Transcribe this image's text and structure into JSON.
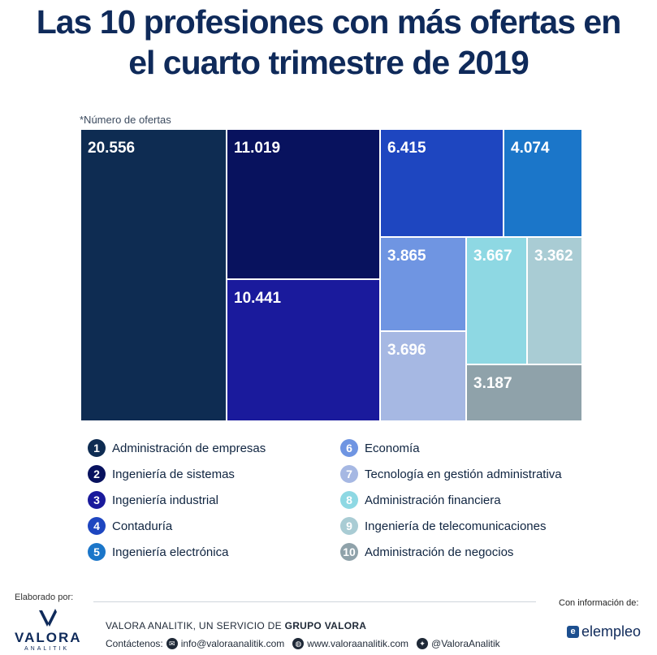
{
  "title_line1": "Las 10 profesiones con más ofertas en",
  "title_line2": "el cuarto trimestre de 2019",
  "subtitle": "*Número de ofertas",
  "chart_data": {
    "type": "treemap",
    "items": [
      {
        "rank": "1",
        "name": "Administración de empresas",
        "label": "20.556",
        "value": 20556,
        "color": "#0e2c52"
      },
      {
        "rank": "2",
        "name": "Ingeniería de sistemas",
        "label": "11.019",
        "value": 11019,
        "color": "#08125e"
      },
      {
        "rank": "3",
        "name": "Ingeniería industrial",
        "label": "10.441",
        "value": 10441,
        "color": "#1a1a9c"
      },
      {
        "rank": "4",
        "name": "Contaduría",
        "label": "6.415",
        "value": 6415,
        "color": "#1e46c0"
      },
      {
        "rank": "5",
        "name": "Ingeniería electrónica",
        "label": "4.074",
        "value": 4074,
        "color": "#1b76c9"
      },
      {
        "rank": "6",
        "name": "Economía",
        "label": "3.865",
        "value": 3865,
        "color": "#6f95e2"
      },
      {
        "rank": "7",
        "name": "Tecnología en gestión administrativa",
        "label": "3.696",
        "value": 3696,
        "color": "#a6b8e3"
      },
      {
        "rank": "8",
        "name": "Administración financiera",
        "label": "3.667",
        "value": 3667,
        "color": "#8ed8e3"
      },
      {
        "rank": "9",
        "name": "Ingeniería de telecomunicaciones",
        "label": "3.362",
        "value": 3362,
        "color": "#a9ccd4"
      },
      {
        "rank": "10",
        "name": "Administración de negocios",
        "label": "3.187",
        "value": 3187,
        "color": "#8fa2aa"
      }
    ]
  },
  "footer": {
    "made_by": "Elaborado por:",
    "logo_name": "VALORA",
    "logo_sub": "ANALITIK",
    "line1_prefix": "VALORA ANALITIK, UN SERVICIO DE ",
    "line1_bold": "GRUPO VALORA",
    "contact_label": "Contáctenos:",
    "email": "info@valoraanalitik.com",
    "website": "www.valoraanalitik.com",
    "twitter": "@ValoraAnalitik",
    "info_label": "Con información de:",
    "source_logo": "elempleo"
  }
}
